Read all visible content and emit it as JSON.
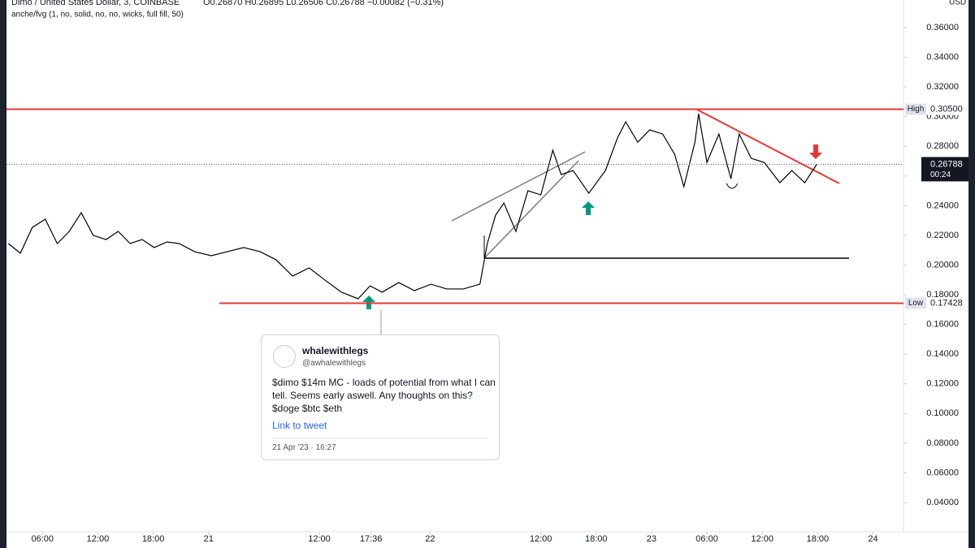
{
  "chart_data": {
    "type": "line",
    "symbol": "Dimo / United States Dollar, 3, COINBASE",
    "ohlc_text": "O0.26870 H0.26895 L0.26506 C0.26788 −0.00082 (−0.31%)",
    "indicator": "anche/fvg (1, no, solid, no, no, wicks, full fill, 50)",
    "currency": "USD",
    "x": [
      2.3,
      3.6,
      4.9,
      6.3,
      7.6,
      8.9,
      10.2,
      11.5,
      12.9,
      14.2,
      15.5,
      16.8,
      18.1,
      19.5,
      20.8,
      22.5,
      24.3,
      26.0,
      27.8,
      29.6,
      31.3,
      33.1,
      34.9,
      36.6,
      38.4,
      40.2,
      41.5,
      42.8,
      44.6,
      46.3,
      48.1,
      49.8,
      51.6,
      53.4,
      54.2,
      55.1,
      56.0,
      57.3,
      58.6,
      60.0,
      61.3,
      62.2,
      63.5,
      65.2,
      67.0,
      68.3,
      69.2,
      70.5,
      71.8,
      73.2,
      74.5,
      75.5,
      76.7,
      77.1,
      78.0,
      79.3,
      80.6,
      81.5,
      82.8,
      84.2,
      85.9,
      87.2,
      88.6,
      89.9
    ],
    "series": [
      {
        "name": "Dimo / United States Dollar",
        "color": "#000000",
        "values": [
          0.2145,
          0.208,
          0.2254,
          0.2309,
          0.2145,
          0.2227,
          0.2353,
          0.22,
          0.2172,
          0.2227,
          0.2145,
          0.2172,
          0.2118,
          0.2156,
          0.2145,
          0.209,
          0.2063,
          0.209,
          0.2118,
          0.209,
          0.2036,
          0.1926,
          0.1981,
          0.1899,
          0.1817,
          0.1773,
          0.186,
          0.1817,
          0.1882,
          0.1828,
          0.1871,
          0.1839,
          0.1839,
          0.1871,
          0.2145,
          0.2336,
          0.2418,
          0.2227,
          0.2501,
          0.2473,
          0.2774,
          0.261,
          0.2637,
          0.2484,
          0.2637,
          0.2856,
          0.2965,
          0.2828,
          0.2911,
          0.2883,
          0.2747,
          0.2528,
          0.2828,
          0.302,
          0.2692,
          0.2883,
          0.2582,
          0.2883,
          0.2719,
          0.2692,
          0.2555,
          0.2637,
          0.2555,
          0.2679
        ]
      }
    ],
    "xlim": [
      2.1,
      99.3
    ],
    "xticks": [
      {
        "value": 6,
        "label": "06:00"
      },
      {
        "value": 12,
        "label": "12:00"
      },
      {
        "value": 18,
        "label": "18:00"
      },
      {
        "value": 24,
        "label": "21"
      },
      {
        "value": 36,
        "label": "12:00"
      },
      {
        "value": 41.6,
        "label": "17:36"
      },
      {
        "value": 48,
        "label": "22"
      },
      {
        "value": 60,
        "label": "12:00"
      },
      {
        "value": 66,
        "label": "18:00"
      },
      {
        "value": 72,
        "label": "23"
      },
      {
        "value": 78,
        "label": "06:00"
      },
      {
        "value": 84,
        "label": "12:00"
      },
      {
        "value": 90,
        "label": "18:00"
      },
      {
        "value": 96,
        "label": "24"
      }
    ],
    "ylim": [
      0.0203,
      0.3786
    ],
    "yticks": [
      {
        "value": 0.04,
        "label": "0.04000"
      },
      {
        "value": 0.06,
        "label": "0.06000"
      },
      {
        "value": 0.08,
        "label": "0.08000"
      },
      {
        "value": 0.1,
        "label": "0.10000"
      },
      {
        "value": 0.12,
        "label": "0.12000"
      },
      {
        "value": 0.14,
        "label": "0.14000"
      },
      {
        "value": 0.16,
        "label": "0.16000"
      },
      {
        "value": 0.18,
        "label": "0.18000"
      },
      {
        "value": 0.2,
        "label": "0.20000"
      },
      {
        "value": 0.22,
        "label": "0.22000"
      },
      {
        "value": 0.24,
        "label": "0.24000"
      },
      {
        "value": 0.26,
        "label": "0.26000"
      },
      {
        "value": 0.28,
        "label": "0.28000"
      },
      {
        "value": 0.3,
        "label": "0.30000"
      },
      {
        "value": 0.32,
        "label": "0.32000"
      },
      {
        "value": 0.34,
        "label": "0.34000"
      },
      {
        "value": 0.36,
        "label": "0.36000"
      }
    ],
    "price_lines": [
      {
        "label": "High",
        "value": 0.305,
        "value_label": "0.30500",
        "color": "#e53935"
      },
      {
        "label": "Low",
        "value": 0.17428,
        "color": "#e53935"
      }
    ],
    "last_price": {
      "value": 0.26788,
      "countdown": "00:24"
    }
  },
  "tweet": {
    "name": "whalewithlegs",
    "handle": "@awhalewithlegs",
    "text": "$dimo $14m MC - loads of potential from what I can tell. Seems early aswell. Any thoughts on this? $doge $btc $eth",
    "link": "Link to tweet",
    "date": "21 Apr '23 · 16:27"
  }
}
